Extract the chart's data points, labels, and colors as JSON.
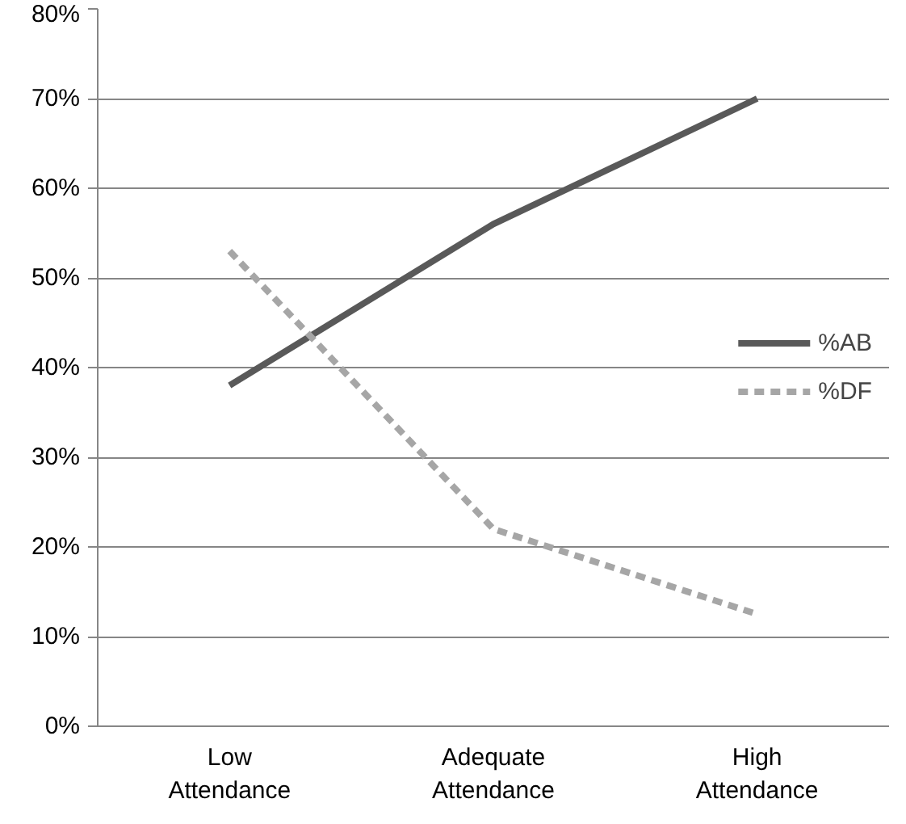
{
  "chart_data": {
    "type": "line",
    "categories": [
      "Low Attendance",
      "Adequate Attendance",
      "High Attendance"
    ],
    "series": [
      {
        "name": "%AB",
        "color": "#595959",
        "values": [
          38,
          56,
          70
        ],
        "line_style": "solid"
      },
      {
        "name": "%DF",
        "color": "#a6a6a6",
        "values": [
          53,
          22,
          12.5
        ],
        "line_style": "dashed"
      }
    ],
    "ylim": [
      0,
      80
    ],
    "yticks": [
      {
        "value": 0,
        "label": "0%"
      },
      {
        "value": 10,
        "label": "10%"
      },
      {
        "value": 20,
        "label": "20%"
      },
      {
        "value": 30,
        "label": "30%"
      },
      {
        "value": 40,
        "label": "40%"
      },
      {
        "value": 50,
        "label": "50%"
      },
      {
        "value": 60,
        "label": "60%"
      },
      {
        "value": 70,
        "label": "70%"
      },
      {
        "value": 80,
        "label": "80%"
      }
    ],
    "grid": "y",
    "legend": "right",
    "marker": "none"
  }
}
